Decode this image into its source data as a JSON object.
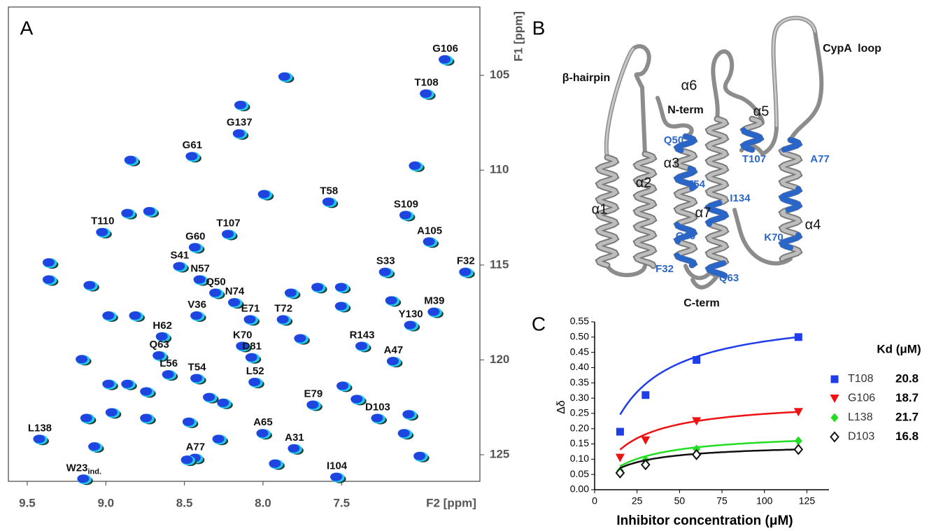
{
  "panel_labels": [
    "A",
    "B",
    "C"
  ],
  "chart_data": [
    {
      "type": "scatter",
      "x_label": "F2 [ppm]",
      "y_label": "F1 [ppm]",
      "xlim": [
        9.62,
        6.62
      ],
      "xticks": [
        9.5,
        {
          "value": 9,
          "label": "9.0"
        },
        8.5,
        {
          "value": 8,
          "label": "8.0"
        },
        7.5
      ],
      "ylim": [
        101.4,
        126.4
      ],
      "yticks": [
        105,
        110,
        115,
        120,
        125
      ],
      "series": [
        {
          "color": "#1f45e0",
          "labels": [
            "G106",
            "T108",
            "G137",
            "G61",
            "T58",
            "S109",
            "T110",
            "T107",
            "A105",
            "G60",
            "S41",
            "S33",
            "F32",
            "N57",
            "Q50",
            "N74",
            "M39",
            "V36",
            "E71",
            "T72",
            "Y130",
            "H62",
            "R143",
            "K70",
            "Q63",
            "D81",
            "A47",
            "L56",
            "T54",
            "L52",
            "E79",
            "D103",
            "A65",
            "L138",
            "A31",
            "A77",
            "I104",
            {
              "text": "W23",
              "sub": "ind."
            }
          ],
          "x": [
            6.84,
            6.96,
            8.15,
            8.45,
            7.58,
            7.09,
            9.02,
            8.22,
            6.94,
            8.43,
            8.53,
            7.22,
            6.71,
            8.4,
            8.3,
            8.18,
            6.91,
            8.42,
            8.08,
            7.87,
            7.06,
            8.64,
            7.37,
            8.13,
            8.66,
            8.07,
            7.17,
            8.6,
            8.42,
            8.05,
            7.68,
            7.27,
            8.0,
            9.42,
            7.8,
            8.43,
            7.53,
            9.14
          ],
          "values": [
            104.2,
            106.0,
            108.1,
            109.3,
            111.7,
            112.4,
            113.3,
            113.4,
            113.8,
            114.1,
            115.1,
            115.4,
            115.4,
            115.8,
            116.5,
            117.0,
            117.5,
            117.7,
            117.9,
            117.9,
            118.2,
            118.8,
            119.3,
            119.3,
            119.8,
            119.9,
            120.1,
            120.8,
            121.0,
            121.2,
            122.4,
            123.1,
            123.9,
            124.2,
            124.7,
            125.2,
            126.2,
            126.3
          ]
        },
        {
          "color": "#1f45e0",
          "x": [
            7.86,
            8.14,
            8.84,
            7.03,
            7.99,
            8.86,
            8.72,
            9.36,
            9.36,
            9.1,
            7.65,
            7.5,
            7.82,
            7.5,
            7.18,
            8.98,
            8.81,
            7.76,
            9.15,
            8.98,
            8.86,
            8.74,
            8.34,
            8.96,
            8.74,
            9.12,
            8.47,
            8.25,
            7.49,
            7.4,
            7.0,
            7.92,
            7.1,
            8.48,
            8.28,
            9.07,
            7.07
          ],
          "values": [
            105.1,
            106.6,
            109.5,
            109.8,
            111.3,
            112.3,
            112.2,
            114.9,
            115.8,
            116.1,
            116.2,
            116.2,
            116.5,
            117.2,
            116.9,
            117.7,
            117.7,
            118.9,
            120.0,
            121.3,
            121.3,
            121.7,
            122.0,
            122.8,
            123.1,
            123.1,
            123.3,
            122.3,
            121.4,
            122.1,
            125.1,
            125.5,
            123.9,
            125.3,
            124.2,
            124.6,
            122.9
          ]
        }
      ]
    },
    {
      "type": "line",
      "x_label": "Inhibitor concentration (μM)",
      "y_label": "Δδ",
      "legend_title": "Kd (μM)",
      "x": [
        15,
        30,
        60,
        120
      ],
      "xlim": [
        0,
        138
      ],
      "xticks": [
        0,
        25,
        50,
        75,
        100,
        125
      ],
      "ylim": [
        0,
        0.55
      ],
      "yticks": [
        {
          "value": 0,
          "label": "0.00"
        },
        {
          "value": 0.05,
          "label": "0.05"
        },
        {
          "value": 0.1,
          "label": "0.10"
        },
        {
          "value": 0.15,
          "label": "0.15"
        },
        {
          "value": 0.2,
          "label": "0.20"
        },
        {
          "value": 0.25,
          "label": "0.25"
        },
        {
          "value": 0.3,
          "label": "0.30"
        },
        {
          "value": 0.35,
          "label": "0.35"
        },
        {
          "value": 0.4,
          "label": "0.40"
        },
        {
          "value": 0.45,
          "label": "0.45"
        },
        {
          "value": 0.5,
          "label": "0.50"
        },
        {
          "value": 0.55,
          "label": "0.55"
        }
      ],
      "series": [
        {
          "name": "T108",
          "color": "#1f3de8",
          "marker": "square",
          "kd": 20.8,
          "values": [
            0.19,
            0.31,
            0.425,
            0.5
          ]
        },
        {
          "name": "G106",
          "color": "#ee1111",
          "marker": "triangle-down",
          "kd": 18.7,
          "values": [
            0.105,
            0.162,
            0.225,
            0.255
          ]
        },
        {
          "name": "L138",
          "color": "#22dd22",
          "marker": "diamond",
          "kd": 21.7,
          "values": [
            0.062,
            0.097,
            0.133,
            0.16
          ]
        },
        {
          "name": "D103",
          "color": "#111111",
          "marker": "open-diamond",
          "kd": 16.8,
          "values": [
            0.055,
            0.082,
            0.115,
            0.132
          ]
        }
      ]
    }
  ],
  "structure": {
    "labels": [
      "β-hairpin",
      "α6",
      "N-term",
      "CypA  loop",
      "α5",
      "Q50",
      "α3",
      "α2",
      "T107",
      "A77",
      "T54",
      "I134",
      "α1",
      "α7",
      "α4",
      "G60",
      "K70",
      "F32",
      "Q63",
      "C-term"
    ]
  }
}
